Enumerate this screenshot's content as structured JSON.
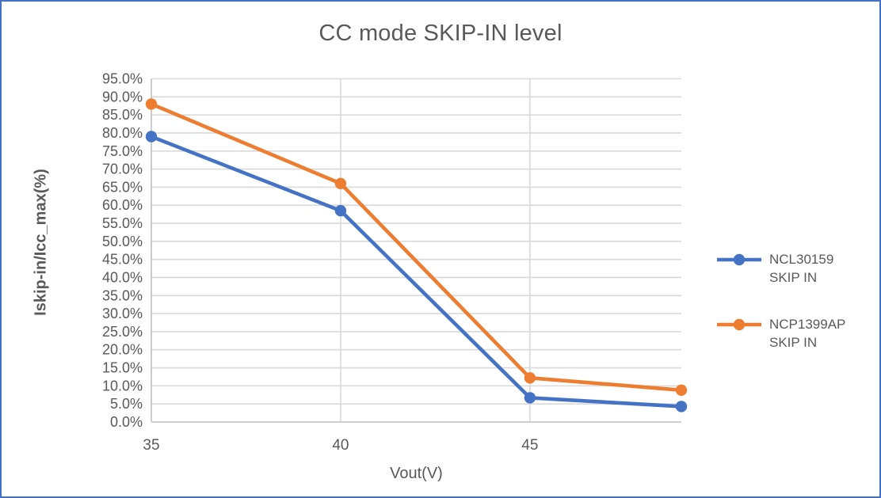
{
  "window": {
    "background": "#FFFFFF",
    "frame_border_color": "#4472C4"
  },
  "chart_data": {
    "type": "line",
    "title": "CC mode SKIP-IN level",
    "xlabel": "Vout(V)",
    "ylabel": "Iskip-in/Icc_max(%)",
    "x": [
      35,
      40,
      45,
      49
    ],
    "x_range": [
      35,
      49
    ],
    "x_tick_values": [
      35,
      40,
      45
    ],
    "x_tick_labels": [
      "35",
      "40",
      "45"
    ],
    "y_range_percent": [
      0,
      95
    ],
    "y_tick_step_percent": 5,
    "y_tick_labels": [
      "0.0%",
      "5.0%",
      "10.0%",
      "15.0%",
      "20.0%",
      "25.0%",
      "30.0%",
      "35.0%",
      "40.0%",
      "45.0%",
      "50.0%",
      "55.0%",
      "60.0%",
      "65.0%",
      "70.0%",
      "75.0%",
      "80.0%",
      "85.0%",
      "90.0%",
      "95.0%"
    ],
    "series": [
      {
        "name": "NCL30159 SKIP IN",
        "legend_lines": [
          "NCL30159",
          "SKIP IN"
        ],
        "color": "#4472C4",
        "values_percent": [
          79.0,
          58.5,
          6.7,
          4.3
        ]
      },
      {
        "name": "NCP1399AP SKIP IN",
        "legend_lines": [
          "NCP1399AP",
          "SKIP IN"
        ],
        "color": "#ED7D31",
        "values_percent": [
          88.0,
          66.0,
          12.2,
          8.8
        ]
      }
    ],
    "grid": true,
    "legend_position": "right",
    "colors": {
      "gridline": "#D9D9D9",
      "axis_line": "#BFBFBF",
      "text": "#595959"
    }
  }
}
